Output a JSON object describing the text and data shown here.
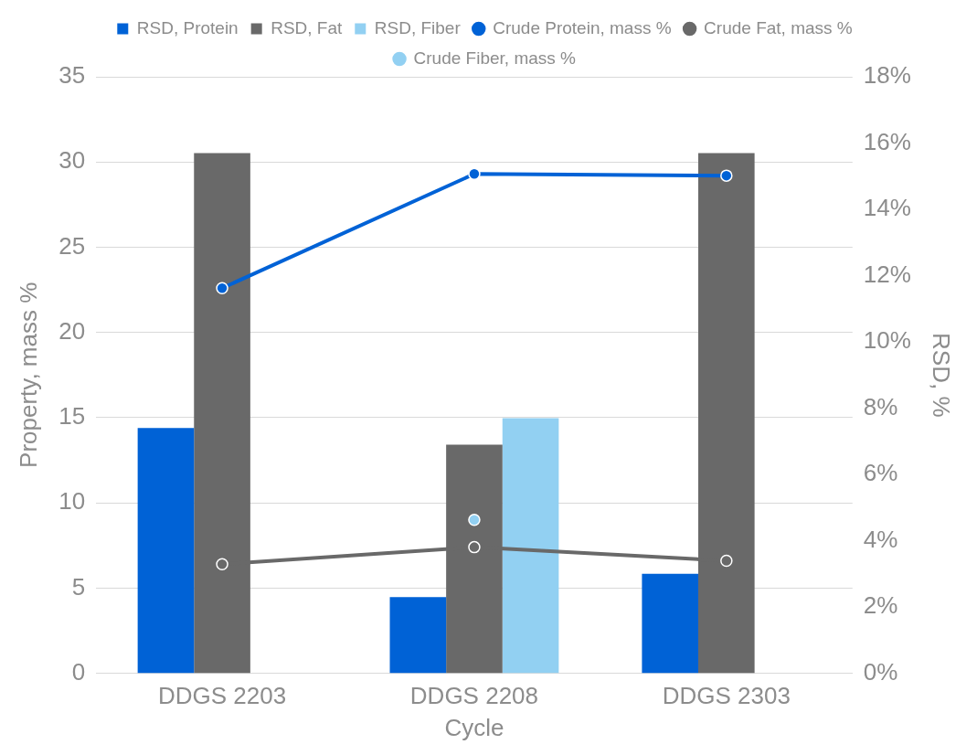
{
  "chart_data": {
    "type": "bar",
    "categories": [
      "DDGS 2203",
      "DDGS 2208",
      "DDGS 2303"
    ],
    "xlabel": "Cycle",
    "ylabel": "Property, mass %",
    "y2label": "RSD, %",
    "series": [
      {
        "name": "RSD, Protein",
        "axis": "y2",
        "color": "#0062d6",
        "values": [
          7.4,
          2.3,
          3.0
        ]
      },
      {
        "name": "RSD, Fat",
        "axis": "y2",
        "color": "#696969",
        "values": [
          15.7,
          6.9,
          15.7
        ]
      },
      {
        "name": "RSD, Fiber",
        "axis": "y2",
        "color": "#92d0f2",
        "values": [
          null,
          7.7,
          null
        ]
      },
      {
        "name": "Crude Protein, mass %",
        "type": "line",
        "axis": "y",
        "color": "#0062d6",
        "values": [
          22.6,
          29.3,
          29.2
        ]
      },
      {
        "name": "Crude Fat, mass %",
        "type": "line",
        "axis": "y",
        "color": "#696969",
        "values": [
          6.4,
          7.4,
          6.6
        ]
      },
      {
        "name": "Crude Fiber, mass %",
        "type": "line",
        "axis": "y",
        "color": "#92d0f2",
        "values": [
          null,
          9.0,
          null
        ]
      }
    ],
    "ylim": [
      0,
      35
    ],
    "yticks": [
      0,
      5,
      10,
      15,
      20,
      25,
      30,
      35
    ],
    "y2lim": [
      0,
      18
    ],
    "y2ticks": [
      {
        "value": 0,
        "label": "0%"
      },
      {
        "value": 2,
        "label": "2%"
      },
      {
        "value": 4,
        "label": "4%"
      },
      {
        "value": 6,
        "label": "6%"
      },
      {
        "value": 8,
        "label": "8%"
      },
      {
        "value": 10,
        "label": "10%"
      },
      {
        "value": 12,
        "label": "12%"
      },
      {
        "value": 14,
        "label": "14%"
      },
      {
        "value": 16,
        "label": "16%"
      },
      {
        "value": 18,
        "label": "18%"
      }
    ],
    "grid": "y",
    "legend": "top",
    "marker": "circle"
  }
}
